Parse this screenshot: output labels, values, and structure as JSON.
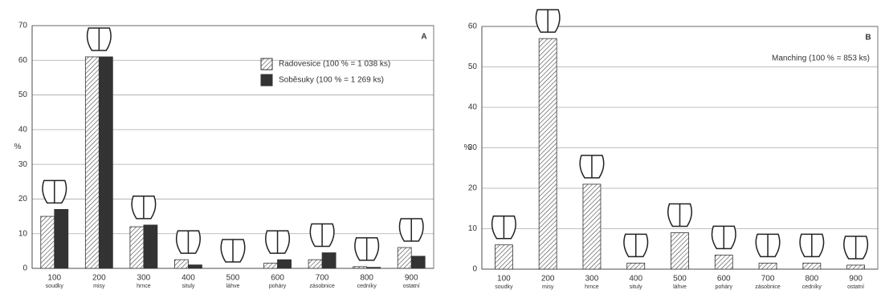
{
  "chart_data": [
    {
      "type": "bar",
      "panel": "A",
      "ylabel": "%",
      "categories": [
        "100",
        "200",
        "300",
        "400",
        "500",
        "600",
        "700",
        "800",
        "900"
      ],
      "category_names": [
        "soudky",
        "misy",
        "hrnce",
        "situly",
        "láhve",
        "poháry",
        "zásobnice",
        "cedníky",
        "ostatní"
      ],
      "series": [
        {
          "name": "Radovesice (100 % = 1 038 ks)",
          "color": "hatch",
          "values": [
            15,
            61,
            12,
            2.5,
            0,
            1.5,
            2.5,
            0.5,
            6
          ]
        },
        {
          "name": "Soběsuky (100 % = 1 269 ks)",
          "color": "#333333",
          "values": [
            17,
            61,
            12.5,
            1,
            0,
            2.5,
            4.5,
            0.3,
            3.5
          ]
        }
      ],
      "ylim": [
        0,
        70
      ],
      "yticks": [
        0,
        10,
        20,
        30,
        40,
        50,
        60,
        70
      ],
      "grid": true,
      "legend": "upper right"
    },
    {
      "type": "bar",
      "panel": "B",
      "ylabel": "%",
      "categories": [
        "100",
        "200",
        "300",
        "400",
        "500",
        "600",
        "700",
        "800",
        "900"
      ],
      "category_names": [
        "soudky",
        "misy",
        "hrnce",
        "situly",
        "láhve",
        "poháry",
        "zásobnice",
        "cedníky",
        "ostatní"
      ],
      "series": [
        {
          "name": "Manching (100 % = 853 ks)",
          "color": "hatch",
          "values": [
            6,
            57,
            21,
            1.5,
            9,
            3.5,
            1.5,
            1.5,
            1
          ]
        }
      ],
      "ylim": [
        0,
        60
      ],
      "yticks": [
        0,
        10,
        20,
        30,
        40,
        50,
        60
      ],
      "grid": true,
      "legend": "upper right"
    }
  ]
}
